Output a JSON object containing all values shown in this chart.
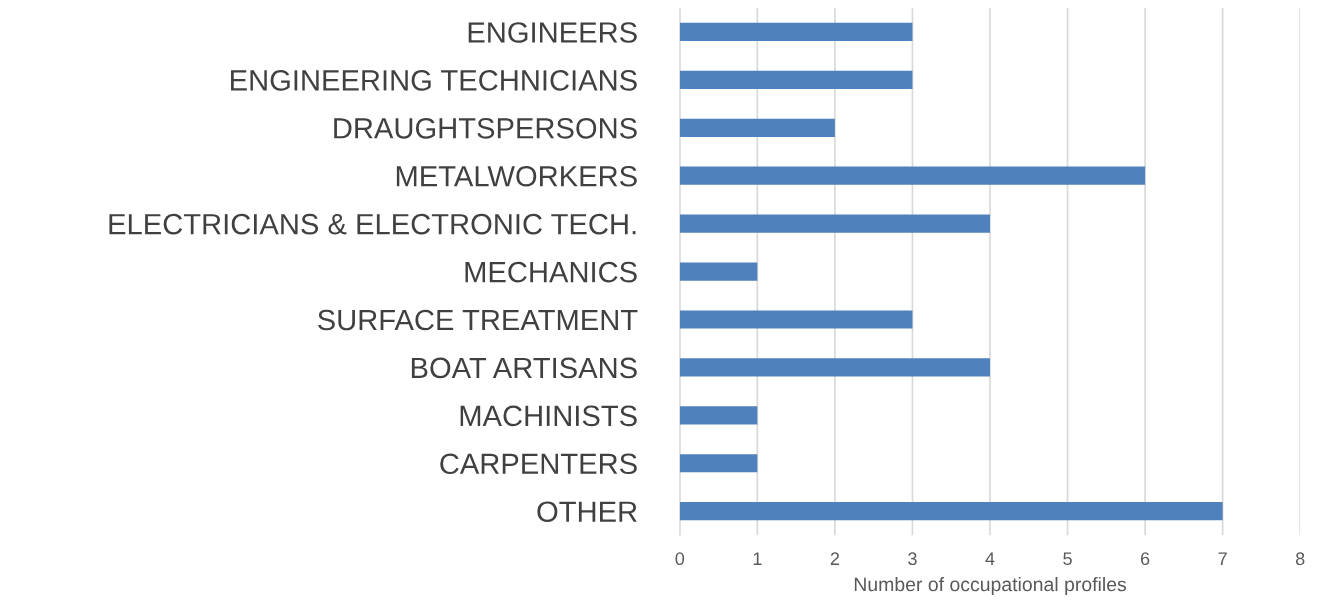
{
  "chart_data": {
    "type": "bar",
    "orientation": "horizontal",
    "categories": [
      "ENGINEERS",
      "ENGINEERING TECHNICIANS",
      "DRAUGHTSPERSONS",
      "METALWORKERS",
      "ELECTRICIANS & ELECTRONIC TECH.",
      "MECHANICS",
      "SURFACE TREATMENT",
      "BOAT ARTISANS",
      "MACHINISTS",
      "CARPENTERS",
      "OTHER"
    ],
    "values": [
      3,
      3,
      2,
      6,
      4,
      1,
      3,
      4,
      1,
      1,
      7
    ],
    "color": "#4f81bd",
    "xlabel": "Number of occupational profiles",
    "xlim": [
      0,
      8
    ],
    "xticks": [
      0,
      1,
      2,
      3,
      4,
      5,
      6,
      7,
      8
    ],
    "grid": "x",
    "legend": false
  }
}
